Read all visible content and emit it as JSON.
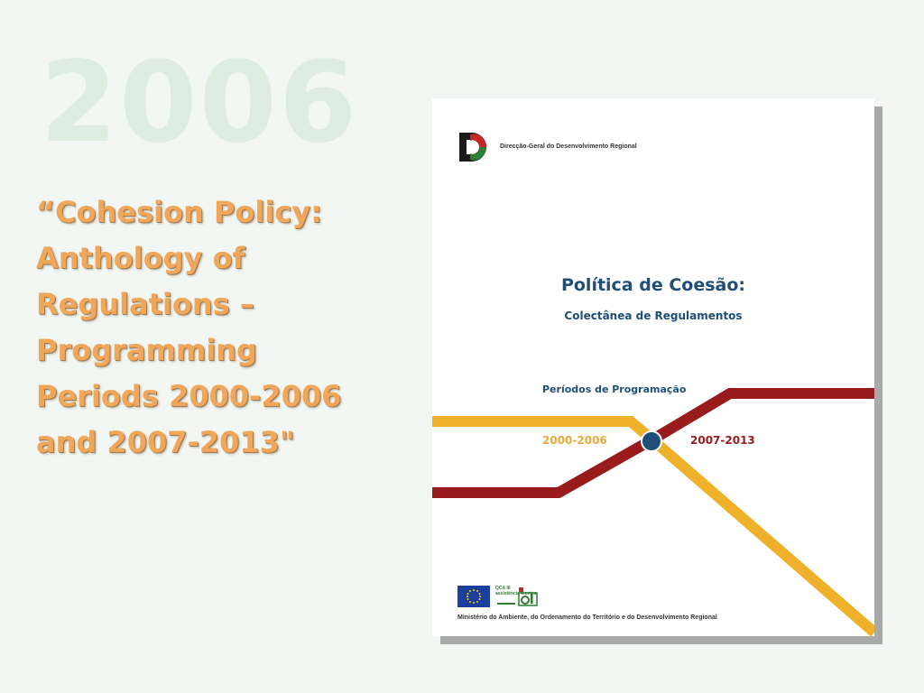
{
  "slide": {
    "year": "2006",
    "title_lines": [
      "“Cohesion Policy:",
      "Anthology of",
      "Regulations –",
      "Programming",
      "Periods 2000-2006",
      "and 2007-2013\""
    ]
  },
  "cover": {
    "organisation": "Direcção-Geral do Desenvolvimento Regional",
    "title": "Política de Coesão:",
    "subtitle": "Colectânea de Regulamentos",
    "periods_label": "Períodos de Programação",
    "period_1": "2000-2006",
    "period_2": "2007-2013",
    "qca_label": "QCA III",
    "qca_sub": "assistência técnica",
    "ministry": "Ministério do Ambiente, do Ordenamento do Território e do Desenvolvimento Regional"
  },
  "colors": {
    "background": "#f2f7f3",
    "title_orange": "#f0a75a",
    "watermark": "#deece2",
    "cover_blue": "#1f4e79",
    "line_yellow": "#f0b12a",
    "line_red": "#9a1b1b"
  }
}
